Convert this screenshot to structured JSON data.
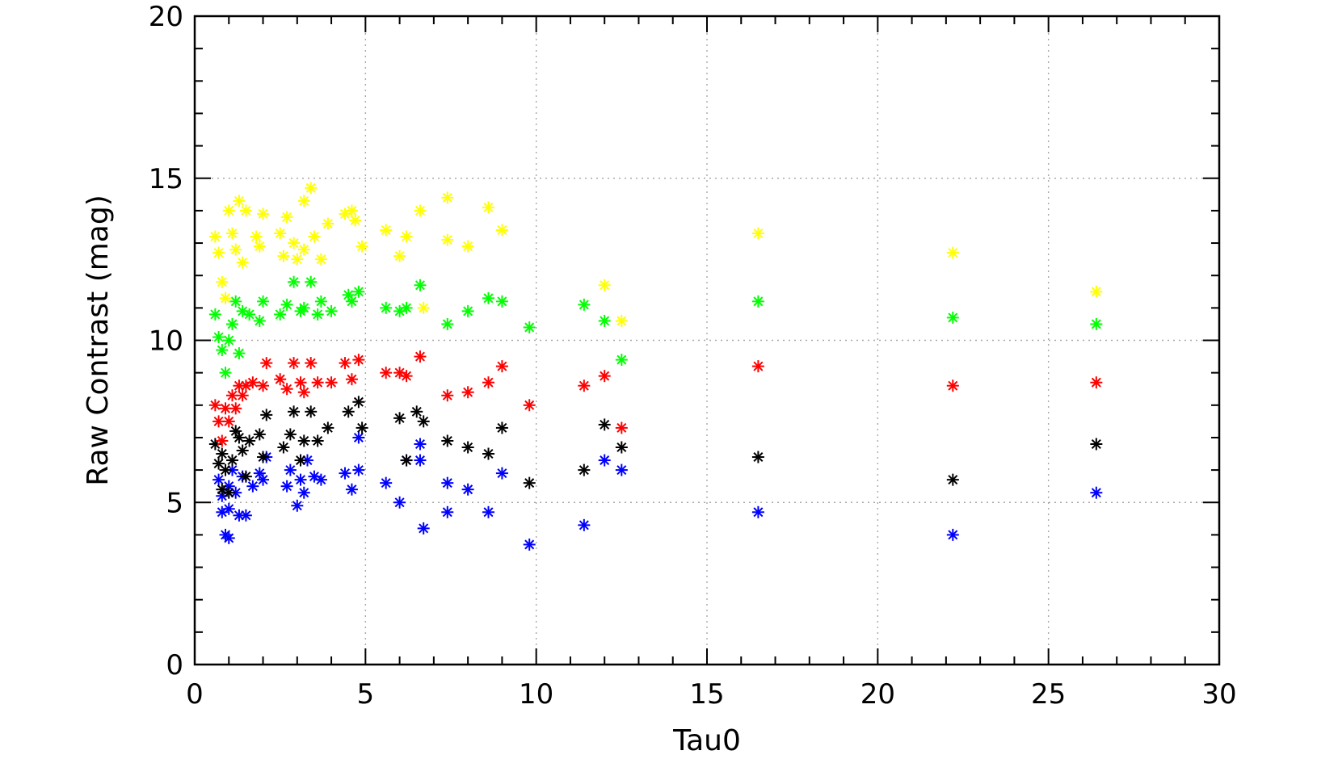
{
  "chart_data": {
    "type": "scatter",
    "title": "",
    "xlabel": "Tau0",
    "ylabel": "Raw Contrast (mag)",
    "xlim": [
      0,
      30
    ],
    "ylim": [
      0,
      20
    ],
    "xticks": [
      0,
      5,
      10,
      15,
      20,
      25,
      30
    ],
    "yticks": [
      0,
      5,
      10,
      15,
      20
    ],
    "grid": true,
    "marker": "asterisk",
    "series": [
      {
        "color": "#0000ff",
        "points": [
          [
            0.7,
            5.7
          ],
          [
            0.8,
            4.7
          ],
          [
            0.8,
            5.2
          ],
          [
            0.9,
            4.0
          ],
          [
            1.0,
            3.9
          ],
          [
            1.0,
            4.8
          ],
          [
            1.0,
            5.5
          ],
          [
            1.1,
            6.0
          ],
          [
            1.2,
            5.3
          ],
          [
            1.3,
            4.6
          ],
          [
            1.4,
            5.8
          ],
          [
            1.5,
            4.6
          ],
          [
            1.7,
            5.5
          ],
          [
            1.9,
            5.9
          ],
          [
            2.0,
            5.7
          ],
          [
            2.1,
            6.4
          ],
          [
            2.7,
            5.5
          ],
          [
            2.8,
            6.0
          ],
          [
            3.0,
            4.9
          ],
          [
            3.1,
            5.7
          ],
          [
            3.2,
            5.3
          ],
          [
            3.3,
            6.3
          ],
          [
            3.5,
            5.8
          ],
          [
            3.7,
            5.7
          ],
          [
            4.4,
            5.9
          ],
          [
            4.6,
            5.4
          ],
          [
            4.8,
            6.0
          ],
          [
            4.8,
            7.0
          ],
          [
            5.6,
            5.6
          ],
          [
            6.0,
            5.0
          ],
          [
            6.2,
            6.3
          ],
          [
            6.6,
            6.8
          ],
          [
            6.6,
            6.3
          ],
          [
            6.7,
            4.2
          ],
          [
            7.4,
            4.7
          ],
          [
            7.4,
            5.6
          ],
          [
            8.0,
            5.4
          ],
          [
            8.6,
            4.7
          ],
          [
            9.0,
            5.9
          ],
          [
            9.8,
            3.7
          ],
          [
            11.4,
            4.3
          ],
          [
            12.0,
            6.3
          ],
          [
            12.5,
            6.0
          ],
          [
            16.5,
            4.7
          ],
          [
            22.2,
            4.0
          ],
          [
            26.4,
            5.3
          ]
        ]
      },
      {
        "color": "#000000",
        "points": [
          [
            0.6,
            6.8
          ],
          [
            0.7,
            6.2
          ],
          [
            0.8,
            5.4
          ],
          [
            0.8,
            6.5
          ],
          [
            0.9,
            6.0
          ],
          [
            1.0,
            5.3
          ],
          [
            1.1,
            6.3
          ],
          [
            1.2,
            7.2
          ],
          [
            1.3,
            7.0
          ],
          [
            1.4,
            6.6
          ],
          [
            1.5,
            5.8
          ],
          [
            1.6,
            6.9
          ],
          [
            1.9,
            7.1
          ],
          [
            2.0,
            6.4
          ],
          [
            2.1,
            7.7
          ],
          [
            2.6,
            6.7
          ],
          [
            2.8,
            7.1
          ],
          [
            2.9,
            7.8
          ],
          [
            3.1,
            6.3
          ],
          [
            3.2,
            6.9
          ],
          [
            3.4,
            7.8
          ],
          [
            3.6,
            6.9
          ],
          [
            3.9,
            7.3
          ],
          [
            4.5,
            7.8
          ],
          [
            4.8,
            8.1
          ],
          [
            4.9,
            7.3
          ],
          [
            6.0,
            7.6
          ],
          [
            6.2,
            6.3
          ],
          [
            6.5,
            7.8
          ],
          [
            6.7,
            7.5
          ],
          [
            7.4,
            6.9
          ],
          [
            8.0,
            6.7
          ],
          [
            8.6,
            6.5
          ],
          [
            9.0,
            7.3
          ],
          [
            9.8,
            5.6
          ],
          [
            11.4,
            6.0
          ],
          [
            12.0,
            7.4
          ],
          [
            12.5,
            6.7
          ],
          [
            16.5,
            6.4
          ],
          [
            22.2,
            5.7
          ],
          [
            26.4,
            6.8
          ]
        ]
      },
      {
        "color": "#ff0000",
        "points": [
          [
            0.6,
            8.0
          ],
          [
            0.7,
            7.5
          ],
          [
            0.8,
            6.9
          ],
          [
            0.9,
            7.9
          ],
          [
            1.0,
            7.5
          ],
          [
            1.1,
            8.3
          ],
          [
            1.2,
            7.9
          ],
          [
            1.3,
            8.6
          ],
          [
            1.4,
            8.3
          ],
          [
            1.5,
            8.6
          ],
          [
            1.7,
            8.7
          ],
          [
            2.0,
            8.6
          ],
          [
            2.1,
            9.3
          ],
          [
            2.5,
            8.8
          ],
          [
            2.7,
            8.5
          ],
          [
            2.9,
            9.3
          ],
          [
            3.1,
            8.7
          ],
          [
            3.2,
            8.4
          ],
          [
            3.4,
            9.3
          ],
          [
            3.6,
            8.7
          ],
          [
            4.0,
            8.7
          ],
          [
            4.4,
            9.3
          ],
          [
            4.6,
            8.8
          ],
          [
            4.8,
            9.4
          ],
          [
            5.6,
            9.0
          ],
          [
            6.0,
            9.0
          ],
          [
            6.2,
            8.9
          ],
          [
            6.6,
            9.5
          ],
          [
            7.4,
            8.3
          ],
          [
            8.0,
            8.4
          ],
          [
            8.6,
            8.7
          ],
          [
            9.0,
            9.2
          ],
          [
            9.8,
            8.0
          ],
          [
            11.4,
            8.6
          ],
          [
            12.0,
            8.9
          ],
          [
            12.5,
            7.3
          ],
          [
            16.5,
            9.2
          ],
          [
            22.2,
            8.6
          ],
          [
            26.4,
            8.7
          ]
        ]
      },
      {
        "color": "#00ff00",
        "points": [
          [
            0.6,
            10.8
          ],
          [
            0.7,
            10.1
          ],
          [
            0.8,
            9.7
          ],
          [
            0.9,
            9.0
          ],
          [
            1.0,
            10.0
          ],
          [
            1.1,
            10.5
          ],
          [
            1.2,
            11.2
          ],
          [
            1.3,
            9.6
          ],
          [
            1.4,
            10.9
          ],
          [
            1.6,
            10.8
          ],
          [
            1.9,
            10.6
          ],
          [
            2.0,
            11.2
          ],
          [
            2.5,
            10.8
          ],
          [
            2.7,
            11.1
          ],
          [
            2.9,
            11.8
          ],
          [
            3.1,
            10.9
          ],
          [
            3.2,
            11.0
          ],
          [
            3.4,
            11.8
          ],
          [
            3.6,
            10.8
          ],
          [
            3.7,
            11.2
          ],
          [
            4.0,
            10.9
          ],
          [
            4.5,
            11.4
          ],
          [
            4.6,
            11.2
          ],
          [
            4.8,
            11.5
          ],
          [
            5.6,
            11.0
          ],
          [
            6.0,
            10.9
          ],
          [
            6.2,
            11.0
          ],
          [
            6.6,
            11.7
          ],
          [
            7.4,
            10.5
          ],
          [
            8.0,
            10.9
          ],
          [
            8.6,
            11.3
          ],
          [
            9.0,
            11.2
          ],
          [
            9.8,
            10.4
          ],
          [
            11.4,
            11.1
          ],
          [
            12.0,
            10.6
          ],
          [
            12.5,
            9.4
          ],
          [
            16.5,
            11.2
          ],
          [
            22.2,
            10.7
          ],
          [
            26.4,
            10.5
          ]
        ]
      },
      {
        "color": "#ffff00",
        "points": [
          [
            0.6,
            13.2
          ],
          [
            0.7,
            12.7
          ],
          [
            0.8,
            11.8
          ],
          [
            0.9,
            11.3
          ],
          [
            1.0,
            14.0
          ],
          [
            1.1,
            13.3
          ],
          [
            1.2,
            12.8
          ],
          [
            1.3,
            14.3
          ],
          [
            1.4,
            12.4
          ],
          [
            1.5,
            14.0
          ],
          [
            1.8,
            13.2
          ],
          [
            1.9,
            12.9
          ],
          [
            2.0,
            13.9
          ],
          [
            2.5,
            13.3
          ],
          [
            2.6,
            12.6
          ],
          [
            2.7,
            13.8
          ],
          [
            2.9,
            13.0
          ],
          [
            3.0,
            12.5
          ],
          [
            3.2,
            14.3
          ],
          [
            3.2,
            12.8
          ],
          [
            3.4,
            14.7
          ],
          [
            3.5,
            13.2
          ],
          [
            3.7,
            12.5
          ],
          [
            3.9,
            13.6
          ],
          [
            4.4,
            13.9
          ],
          [
            4.6,
            14.0
          ],
          [
            4.7,
            13.7
          ],
          [
            4.9,
            12.9
          ],
          [
            5.6,
            13.4
          ],
          [
            6.0,
            12.6
          ],
          [
            6.2,
            13.2
          ],
          [
            6.6,
            14.0
          ],
          [
            6.7,
            11.0
          ],
          [
            7.4,
            14.4
          ],
          [
            7.4,
            13.1
          ],
          [
            8.0,
            12.9
          ],
          [
            8.6,
            14.1
          ],
          [
            9.0,
            13.4
          ],
          [
            12.0,
            11.7
          ],
          [
            12.5,
            10.6
          ],
          [
            16.5,
            13.3
          ],
          [
            22.2,
            12.7
          ],
          [
            26.4,
            11.5
          ]
        ]
      }
    ]
  }
}
